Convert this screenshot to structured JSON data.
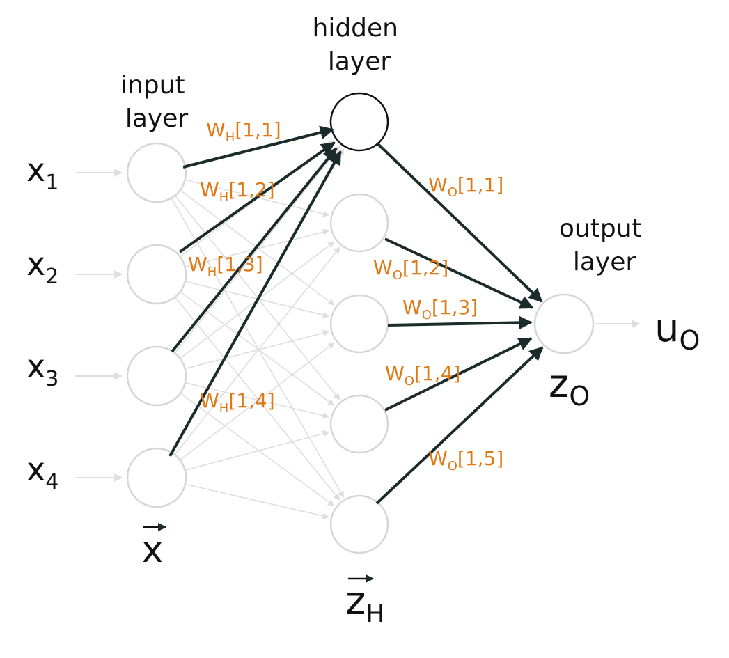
{
  "colors": {
    "background": "#ffffff",
    "node_stroke_faint": "#d6d6d6",
    "node_stroke_active": "#111111",
    "faint_edge": "#dedede",
    "weighted_edge": "#1b2b2b",
    "weight_label": "#e07814",
    "text": "#111111"
  },
  "layer_labels": {
    "input": [
      "input",
      "layer"
    ],
    "hidden": [
      "hidden",
      "layer"
    ],
    "output": [
      "output",
      "layer"
    ]
  },
  "inputs": [
    {
      "base": "x",
      "sub": "1"
    },
    {
      "base": "x",
      "sub": "2"
    },
    {
      "base": "x",
      "sub": "3"
    },
    {
      "base": "x",
      "sub": "4"
    }
  ],
  "vectors": {
    "input": {
      "base": "x"
    },
    "hidden": {
      "base": "z",
      "sub": "H"
    }
  },
  "output_node": {
    "base": "z",
    "sub": "O"
  },
  "output_value": {
    "base": "u",
    "sub": "O"
  },
  "hidden_weights": [
    {
      "base": "W",
      "sub": "H",
      "idx": "[1,1]"
    },
    {
      "base": "W",
      "sub": "H",
      "idx": "[1,2]"
    },
    {
      "base": "W",
      "sub": "H",
      "idx": "[1,3]"
    },
    {
      "base": "W",
      "sub": "H",
      "idx": "[1,4]"
    }
  ],
  "output_weights": [
    {
      "base": "W",
      "sub": "O",
      "idx": "[1,1]"
    },
    {
      "base": "W",
      "sub": "O",
      "idx": "[1,2]"
    },
    {
      "base": "W",
      "sub": "O",
      "idx": "[1,3]"
    },
    {
      "base": "W",
      "sub": "O",
      "idx": "[1,4]"
    },
    {
      "base": "W",
      "sub": "O",
      "idx": "[1,5]"
    }
  ]
}
